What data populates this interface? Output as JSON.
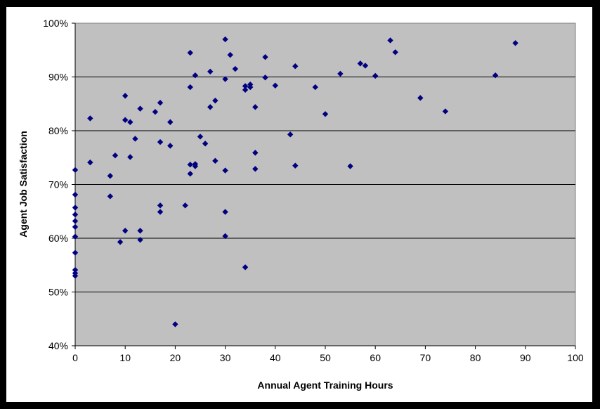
{
  "chart_data": {
    "type": "scatter",
    "title": "",
    "xlabel": "Annual Agent Training Hours",
    "ylabel": "Agent Job Satisfaction",
    "xlim": [
      0,
      100
    ],
    "ylim": [
      0.4,
      1.0
    ],
    "x_ticks": [
      "0",
      "10",
      "20",
      "30",
      "40",
      "50",
      "60",
      "70",
      "80",
      "90",
      "100"
    ],
    "y_ticks": [
      "40%",
      "50%",
      "60%",
      "70%",
      "80%",
      "90%",
      "100%"
    ],
    "grid": "horizontal",
    "legend": "none",
    "colors": {
      "plot_bg": "#c0c0c0",
      "marker": "#000080",
      "gridline": "#000000"
    },
    "points": [
      [
        0,
        0.727
      ],
      [
        0,
        0.681
      ],
      [
        0,
        0.657
      ],
      [
        0,
        0.644
      ],
      [
        0,
        0.632
      ],
      [
        0,
        0.621
      ],
      [
        0,
        0.603
      ],
      [
        0,
        0.573
      ],
      [
        0,
        0.541
      ],
      [
        0,
        0.535
      ],
      [
        0,
        0.53
      ],
      [
        3,
        0.823
      ],
      [
        3,
        0.741
      ],
      [
        7,
        0.716
      ],
      [
        7,
        0.678
      ],
      [
        8,
        0.754
      ],
      [
        9,
        0.593
      ],
      [
        10,
        0.865
      ],
      [
        10,
        0.82
      ],
      [
        10,
        0.614
      ],
      [
        11,
        0.816
      ],
      [
        11,
        0.751
      ],
      [
        12,
        0.785
      ],
      [
        13,
        0.841
      ],
      [
        13,
        0.614
      ],
      [
        13,
        0.597
      ],
      [
        16,
        0.835
      ],
      [
        17,
        0.852
      ],
      [
        17,
        0.779
      ],
      [
        17,
        0.661
      ],
      [
        17,
        0.649
      ],
      [
        19,
        0.816
      ],
      [
        19,
        0.772
      ],
      [
        20,
        0.44
      ],
      [
        22,
        0.661
      ],
      [
        23,
        0.945
      ],
      [
        23,
        0.881
      ],
      [
        23,
        0.737
      ],
      [
        23,
        0.72
      ],
      [
        24,
        0.903
      ],
      [
        24,
        0.738
      ],
      [
        24,
        0.734
      ],
      [
        25,
        0.789
      ],
      [
        26,
        0.776
      ],
      [
        27,
        0.91
      ],
      [
        27,
        0.844
      ],
      [
        28,
        0.856
      ],
      [
        28,
        0.744
      ],
      [
        30,
        0.97
      ],
      [
        30,
        0.896
      ],
      [
        30,
        0.726
      ],
      [
        30,
        0.649
      ],
      [
        30,
        0.604
      ],
      [
        31,
        0.941
      ],
      [
        32,
        0.915
      ],
      [
        34,
        0.883
      ],
      [
        34,
        0.876
      ],
      [
        34,
        0.546
      ],
      [
        35,
        0.886
      ],
      [
        35,
        0.881
      ],
      [
        36,
        0.844
      ],
      [
        36,
        0.759
      ],
      [
        36,
        0.729
      ],
      [
        38,
        0.937
      ],
      [
        38,
        0.899
      ],
      [
        40,
        0.884
      ],
      [
        43,
        0.793
      ],
      [
        44,
        0.92
      ],
      [
        44,
        0.735
      ],
      [
        48,
        0.881
      ],
      [
        50,
        0.831
      ],
      [
        53,
        0.906
      ],
      [
        55,
        0.734
      ],
      [
        57,
        0.925
      ],
      [
        58,
        0.921
      ],
      [
        60,
        0.902
      ],
      [
        63,
        0.968
      ],
      [
        64,
        0.946
      ],
      [
        69,
        0.861
      ],
      [
        74,
        0.836
      ],
      [
        84,
        0.903
      ],
      [
        88,
        0.963
      ]
    ]
  }
}
